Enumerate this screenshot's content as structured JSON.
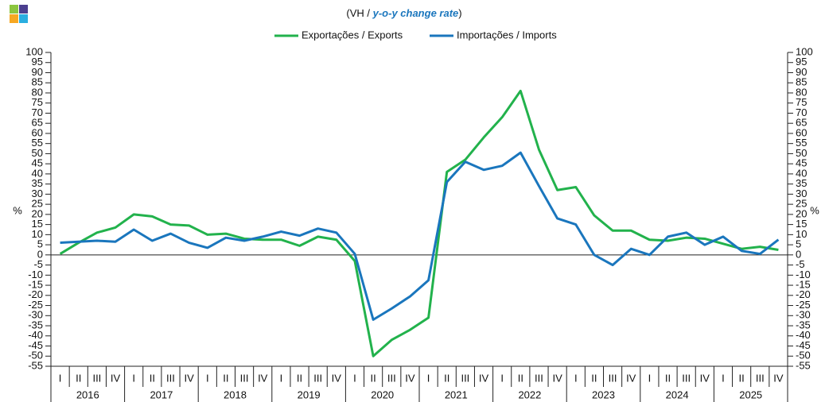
{
  "chart_data": {
    "type": "line",
    "title": [
      "(VH / ",
      "y-o-y change rate",
      ")"
    ],
    "ylabel": "%",
    "categories": [
      "I",
      "II",
      "III",
      "IV",
      "I",
      "II",
      "III",
      "IV",
      "I",
      "II",
      "III",
      "IV",
      "I",
      "II",
      "III",
      "IV",
      "I",
      "II",
      "III",
      "IV",
      "I",
      "II",
      "III",
      "IV",
      "I",
      "II",
      "III",
      "IV",
      "I",
      "II",
      "III",
      "IV",
      "I",
      "II",
      "III",
      "IV",
      "I",
      "II",
      "III",
      "IV"
    ],
    "years": [
      "2016",
      "2017",
      "2018",
      "2019",
      "2020",
      "2021",
      "2022",
      "2023",
      "2024",
      "2025"
    ],
    "series": [
      {
        "name": "Exportações / Exports",
        "color": "#22b24c",
        "values": [
          0.5,
          6,
          11,
          13.5,
          20,
          19,
          15,
          14.5,
          10,
          10.5,
          8,
          7.5,
          7.5,
          4.5,
          9,
          7.5,
          -3,
          -50,
          -42,
          -37,
          -31,
          41,
          47,
          58,
          68,
          81,
          52,
          32,
          33.5,
          19.5,
          12,
          12,
          7.5,
          7,
          8.5,
          8,
          5.5,
          3,
          4,
          2.5
        ]
      },
      {
        "name": "Importações / Imports",
        "color": "#1a76bd",
        "values": [
          6,
          6.5,
          7,
          6.5,
          12.5,
          7,
          10.5,
          6,
          3.5,
          8.5,
          7,
          9,
          11.5,
          9.5,
          13,
          11,
          0.5,
          -32,
          -26.5,
          -20.5,
          -12.5,
          36,
          46,
          42,
          44,
          50.5,
          34,
          18,
          15,
          0,
          -5,
          3,
          0,
          9,
          11,
          5,
          9,
          2,
          0.5,
          7.5
        ]
      }
    ],
    "ylim": [
      -55,
      100
    ],
    "yticks": [
      100,
      95,
      90,
      85,
      80,
      75,
      70,
      65,
      60,
      55,
      50,
      45,
      40,
      35,
      30,
      25,
      20,
      15,
      10,
      5,
      0,
      -5,
      -10,
      -15,
      -20,
      -25,
      -30,
      -35,
      -40,
      -45,
      -50,
      -55
    ],
    "grid": false,
    "legend": "top"
  }
}
